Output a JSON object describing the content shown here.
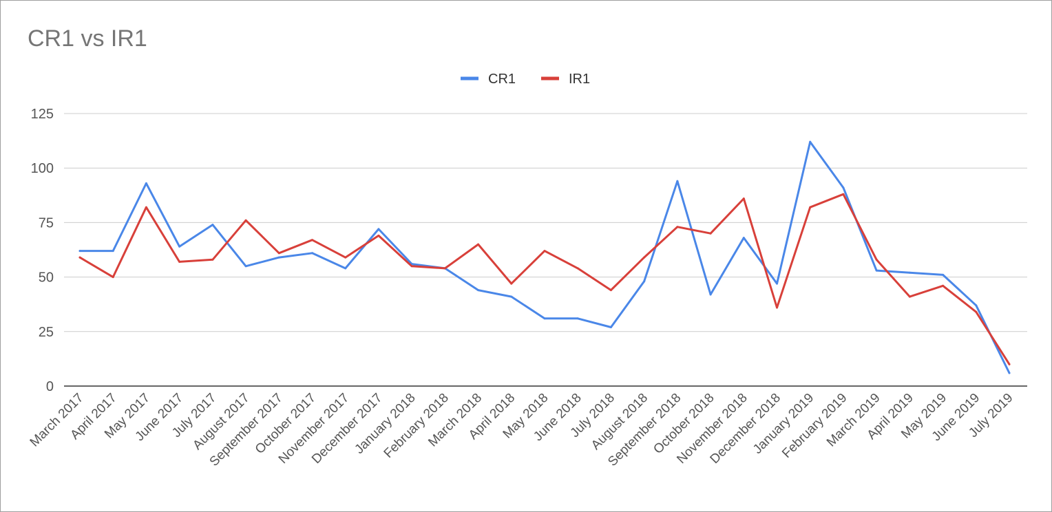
{
  "title": "CR1 vs IR1",
  "legend": [
    {
      "name": "CR1",
      "color": "#4a87e8"
    },
    {
      "name": "IR1",
      "color": "#d8403a"
    }
  ],
  "chart_data": {
    "type": "line",
    "title": "CR1 vs IR1",
    "xlabel": "",
    "ylabel": "",
    "ylim": [
      0,
      125
    ],
    "yticks": [
      0,
      25,
      50,
      75,
      100,
      125
    ],
    "grid": true,
    "legend_position": "top",
    "x": [
      "March 2017",
      "April 2017",
      "May 2017",
      "June 2017",
      "July 2017",
      "August 2017",
      "September 2017",
      "October 2017",
      "November 2017",
      "December 2017",
      "January 2018",
      "February 2018",
      "March 2018",
      "April 2018",
      "May 2018",
      "June 2018",
      "July 2018",
      "August 2018",
      "September 2018",
      "October 2018",
      "November 2018",
      "December 2018",
      "January 2019",
      "February 2019",
      "March 2019",
      "April 2019",
      "May 2019",
      "June 2019",
      "July 2019"
    ],
    "series": [
      {
        "name": "CR1",
        "color": "#4a87e8",
        "values": [
          62,
          62,
          93,
          64,
          74,
          55,
          59,
          61,
          54,
          72,
          56,
          54,
          44,
          41,
          31,
          31,
          27,
          48,
          94,
          42,
          68,
          47,
          112,
          91,
          53,
          52,
          51,
          37,
          6
        ]
      },
      {
        "name": "IR1",
        "color": "#d8403a",
        "values": [
          59,
          50,
          82,
          57,
          58,
          76,
          61,
          67,
          59,
          69,
          55,
          54,
          65,
          47,
          62,
          54,
          44,
          59,
          73,
          70,
          86,
          36,
          82,
          88,
          58,
          41,
          46,
          34,
          10
        ]
      }
    ]
  }
}
